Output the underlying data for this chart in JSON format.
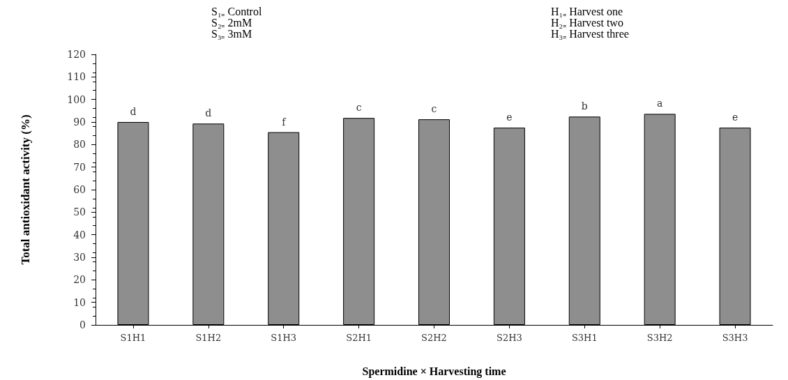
{
  "chart_data": {
    "type": "bar",
    "xlabel": "Spermidine × Harvesting time",
    "ylabel": "Total antioxidant activity (%)",
    "categories": [
      "S1H1",
      "S1H2",
      "S1H3",
      "S2H1",
      "S2H2",
      "S2H3",
      "S3H1",
      "S3H2",
      "S3H3"
    ],
    "values": [
      90.0,
      89.3,
      85.5,
      91.8,
      91.2,
      87.5,
      92.4,
      93.6,
      87.5
    ],
    "value_labels": [
      "d",
      "d",
      "f",
      "c",
      "c",
      "e",
      "b",
      "a",
      "e"
    ],
    "color": "#8e8e8e",
    "ylim": [
      0,
      120
    ],
    "yticks": [
      0,
      10,
      20,
      30,
      40,
      50,
      60,
      70,
      80,
      90,
      100,
      110,
      120
    ],
    "grid": false,
    "annotations": [
      "S₁₌ Control",
      "S₂₌ 2mM",
      "S₃₌ 3mM",
      "H₁₌ Harvest one",
      "H₂₌ Harvest two",
      "H₃₌ Harvest three"
    ]
  }
}
